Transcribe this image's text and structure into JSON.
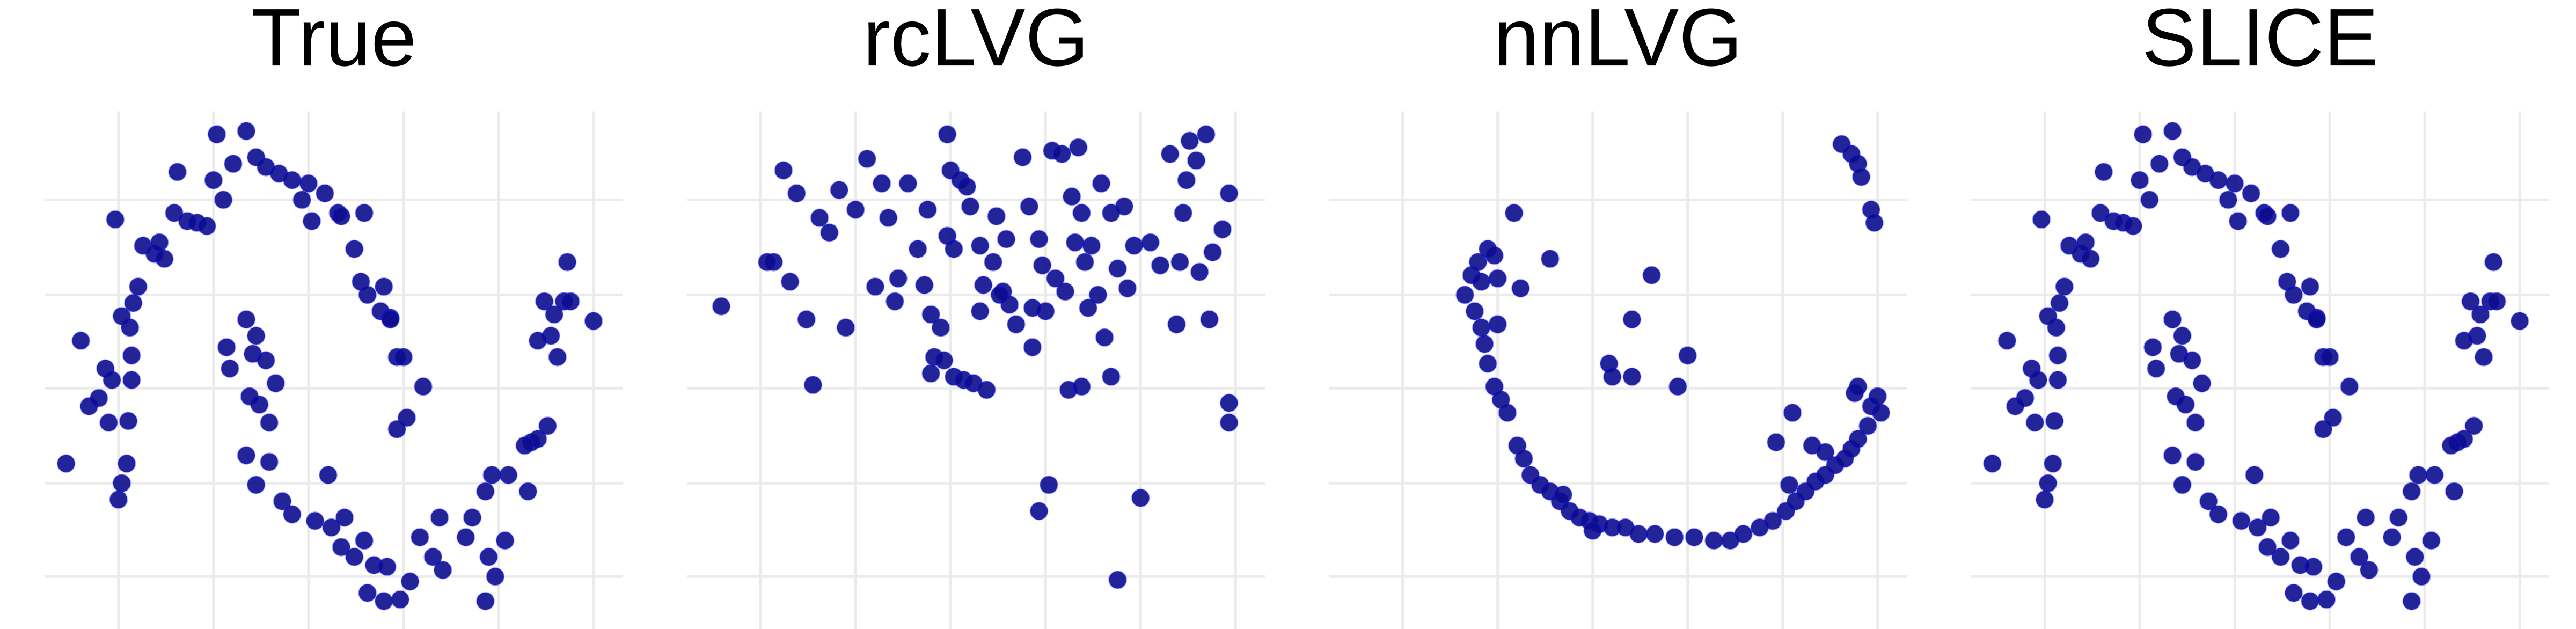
{
  "chart_data": [
    {
      "type": "scatter",
      "title": "True",
      "color": "#0c0c8e",
      "grid": true,
      "xlim": [
        25,
        378
      ],
      "ylim": [
        0,
        316
      ],
      "xticks": [
        70,
        128,
        186,
        244,
        302,
        360
      ],
      "yticks": [
        32,
        89,
        147,
        204,
        262
      ],
      "x": [
        38,
        47,
        52,
        58,
        62,
        64,
        66,
        70,
        72,
        75,
        76,
        78,
        78,
        77,
        79,
        82,
        72,
        68,
        85,
        92,
        95,
        98,
        104,
        106,
        112,
        118,
        124,
        128,
        130,
        134,
        140,
        148,
        154,
        160,
        168,
        176,
        182,
        186,
        188,
        196,
        204,
        214,
        206,
        220,
        218,
        222,
        230,
        232,
        236,
        240,
        244,
        256,
        240,
        246,
        236,
        148,
        154,
        152,
        136,
        138,
        160,
        166,
        150,
        156,
        162,
        148,
        162,
        154,
        170,
        176,
        190,
        198,
        200,
        208,
        206,
        214,
        220,
        226,
        234,
        222,
        232,
        242,
        248,
        254,
        262,
        268,
        266,
        282,
        286,
        294,
        296,
        300,
        294,
        298,
        308,
        320,
        322,
        326,
        332,
        330,
        336,
        334,
        338,
        342,
        344,
        346,
        360,
        326,
        306,
        318
      ],
      "values": [
        101,
        176,
        136,
        141,
        159,
        126,
        152,
        79,
        89,
        101,
        127,
        152,
        167,
        184,
        199,
        209,
        191,
        250,
        234,
        229,
        236,
        226,
        254,
        279,
        249,
        248,
        246,
        274,
        302,
        262,
        284,
        304,
        288,
        282,
        278,
        274,
        262,
        272,
        249,
        266,
        254,
        232,
        252,
        254,
        212,
        204,
        194,
        209,
        190,
        166,
        166,
        148,
        122,
        129,
        189,
        189,
        179,
        168,
        172,
        159,
        164,
        150,
        142,
        137,
        126,
        106,
        102,
        88,
        78,
        70,
        66,
        94,
        62,
        68,
        50,
        44,
        54,
        39,
        38,
        22,
        17,
        18,
        29,
        56,
        44,
        36,
        68,
        56,
        68,
        84,
        44,
        32,
        17,
        94,
        94,
        84,
        114,
        116,
        124,
        200,
        192,
        179,
        166,
        200,
        224,
        200,
        188,
        176,
        54,
        112
      ]
    },
    {
      "type": "scatter",
      "title": "rcLVG",
      "color": "#0c0c8e",
      "grid": true,
      "xlim": [
        25,
        378
      ],
      "ylim": [
        0,
        316
      ],
      "xticks": [
        70,
        128,
        186,
        244,
        302,
        360
      ],
      "yticks": [
        32,
        89,
        147,
        204,
        262
      ],
      "x": [
        46,
        84,
        78,
        74,
        88,
        92,
        98,
        102,
        106,
        112,
        118,
        122,
        128,
        135,
        140,
        144,
        148,
        152,
        154,
        160,
        166,
        172,
        170,
        174,
        176,
        174,
        182,
        188,
        194,
        200,
        208,
        184,
        186,
        192,
        196,
        198,
        184,
        188,
        204,
        206,
        212,
        214,
        218,
        220,
        222,
        226,
        230,
        234,
        236,
        240,
        242,
        244,
        248,
        250,
        254,
        256,
        260,
        262,
        264,
        266,
        268,
        270,
        272,
        276,
        278,
        280,
        284,
        288,
        292,
        294,
        298,
        308,
        314,
        320,
        326,
        328,
        332,
        336,
        338,
        342,
        346,
        352,
        356,
        324,
        330,
        344,
        246,
        240,
        302,
        288,
        258,
        266,
        284,
        356,
        356,
        236,
        216,
        204,
        180
      ],
      "values": [
        197,
        280,
        224,
        224,
        212,
        266,
        189,
        149,
        251,
        242,
        268,
        184,
        256,
        287,
        209,
        272,
        251,
        200,
        214,
        272,
        232,
        256,
        210,
        192,
        166,
        156,
        164,
        154,
        152,
        150,
        146,
        302,
        280,
        274,
        270,
        258,
        240,
        232,
        234,
        210,
        224,
        252,
        206,
        238,
        198,
        186,
        288,
        258,
        172,
        238,
        222,
        194,
        292,
        214,
        290,
        206,
        264,
        236,
        294,
        254,
        224,
        196,
        234,
        204,
        272,
        178,
        254,
        220,
        258,
        208,
        234,
        236,
        222,
        290,
        224,
        254,
        298,
        286,
        218,
        302,
        230,
        244,
        266,
        186,
        274,
        189,
        88,
        72,
        80,
        30,
        146,
        148,
        154,
        138,
        126,
        196,
        204,
        194,
        184
      ]
    },
    {
      "type": "scatter",
      "title": "nnLVG",
      "color": "#0c0c8e",
      "grid": true,
      "xlim": [
        25,
        378
      ],
      "ylim": [
        0,
        316
      ],
      "xticks": [
        70,
        128,
        186,
        244,
        302,
        360
      ],
      "yticks": [
        32,
        89,
        147,
        204,
        262
      ],
      "x": [
        108,
        112,
        116,
        118,
        114,
        122,
        126,
        128,
        118,
        120,
        122,
        126,
        130,
        134,
        140,
        144,
        148,
        154,
        160,
        166,
        172,
        178,
        184,
        190,
        198,
        206,
        214,
        224,
        236,
        248,
        260,
        270,
        278,
        288,
        296,
        304,
        310,
        316,
        322,
        328,
        334,
        340,
        344,
        348,
        354,
        356,
        360,
        362,
        346,
        348,
        308,
        298,
        320,
        328,
        338,
        344,
        348,
        350,
        356,
        358,
        138,
        160,
        222,
        210,
        196,
        198,
        210,
        244,
        238,
        142,
        128,
        168,
        186,
        306
      ],
      "values": [
        204,
        216,
        224,
        212,
        194,
        232,
        228,
        214,
        184,
        174,
        162,
        148,
        140,
        132,
        112,
        104,
        94,
        88,
        84,
        78,
        72,
        68,
        66,
        64,
        62,
        62,
        58,
        58,
        56,
        56,
        54,
        54,
        58,
        62,
        66,
        72,
        78,
        84,
        90,
        94,
        100,
        104,
        110,
        116,
        124,
        136,
        142,
        132,
        144,
        148,
        132,
        114,
        112,
        108,
        296,
        290,
        284,
        276,
        256,
        248,
        254,
        226,
        216,
        189,
        162,
        154,
        154,
        167,
        148,
        208,
        186,
        82,
        60,
        88
      ]
    },
    {
      "type": "scatter",
      "title": "SLICE",
      "color": "#0c0c8e",
      "grid": true,
      "xlim": [
        25,
        378
      ],
      "ylim": [
        0,
        316
      ],
      "xticks": [
        70,
        128,
        186,
        244,
        302,
        360
      ],
      "yticks": [
        32,
        89,
        147,
        204,
        262
      ],
      "x": [
        38,
        47,
        52,
        58,
        62,
        64,
        66,
        70,
        72,
        75,
        76,
        78,
        78,
        77,
        79,
        82,
        72,
        68,
        85,
        92,
        95,
        98,
        104,
        106,
        112,
        118,
        124,
        128,
        130,
        134,
        140,
        148,
        154,
        160,
        168,
        176,
        182,
        186,
        188,
        196,
        204,
        214,
        206,
        220,
        218,
        222,
        230,
        232,
        236,
        240,
        244,
        256,
        240,
        246,
        236,
        148,
        154,
        152,
        136,
        138,
        160,
        166,
        150,
        156,
        162,
        148,
        162,
        154,
        170,
        176,
        190,
        198,
        200,
        208,
        206,
        214,
        220,
        226,
        234,
        222,
        232,
        242,
        248,
        254,
        262,
        268,
        266,
        282,
        286,
        294,
        296,
        300,
        294,
        298,
        308,
        320,
        322,
        326,
        332,
        330,
        336,
        334,
        338,
        342,
        344,
        346,
        360,
        326,
        306,
        318
      ],
      "values": [
        101,
        176,
        136,
        141,
        159,
        126,
        152,
        79,
        89,
        101,
        127,
        152,
        167,
        184,
        199,
        209,
        191,
        250,
        234,
        229,
        236,
        226,
        254,
        279,
        249,
        248,
        246,
        274,
        302,
        262,
        284,
        304,
        288,
        282,
        278,
        274,
        262,
        272,
        249,
        266,
        254,
        232,
        252,
        254,
        212,
        204,
        194,
        209,
        190,
        166,
        166,
        148,
        122,
        129,
        189,
        189,
        179,
        168,
        172,
        159,
        164,
        150,
        142,
        137,
        126,
        106,
        102,
        88,
        78,
        70,
        66,
        94,
        62,
        68,
        50,
        44,
        54,
        39,
        38,
        22,
        17,
        18,
        29,
        56,
        44,
        36,
        68,
        56,
        68,
        84,
        44,
        32,
        17,
        94,
        94,
        84,
        114,
        116,
        124,
        200,
        192,
        179,
        166,
        200,
        224,
        200,
        188,
        176,
        54,
        112
      ]
    }
  ]
}
